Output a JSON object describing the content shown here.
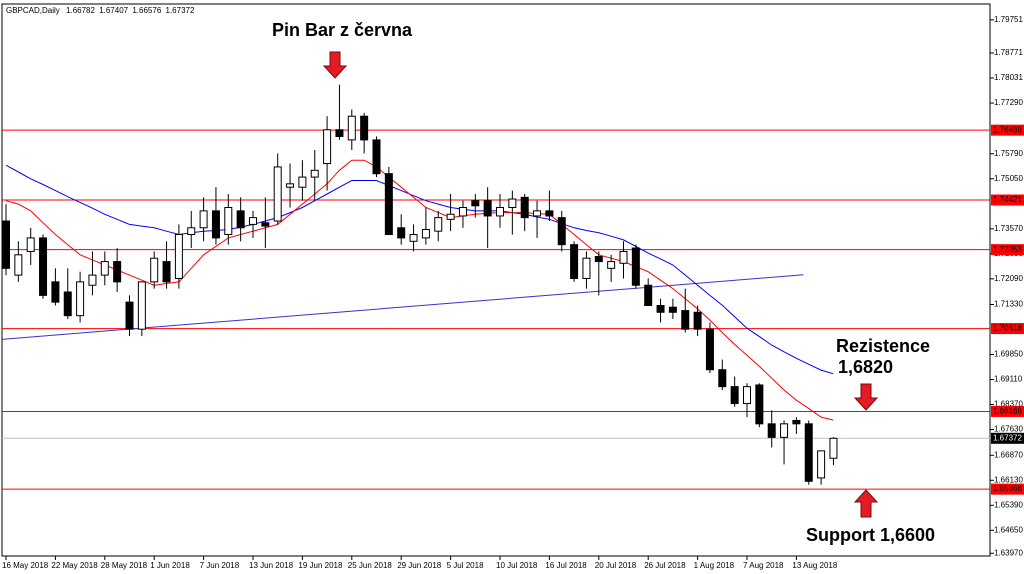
{
  "chart_data": {
    "type": "candlestick",
    "symbol": "GBPCAD,Daily",
    "header_values": [
      1.66782,
      1.67407,
      1.66576,
      1.67372
    ],
    "categories": [
      "16 May 2018",
      null,
      null,
      null,
      "22 May 2018",
      null,
      null,
      null,
      "28 May 2018",
      null,
      null,
      null,
      "1 Jun 2018",
      null,
      null,
      null,
      "7 Jun 2018",
      null,
      null,
      null,
      "13 Jun 2018",
      null,
      null,
      null,
      "19 Jun 2018",
      null,
      null,
      null,
      "25 Jun 2018",
      null,
      null,
      null,
      "29 Jun 2018",
      null,
      null,
      null,
      "5 Jul 2018",
      null,
      null,
      null,
      "10 Jul 2018",
      null,
      null,
      null,
      "16 Jul 2018",
      null,
      null,
      null,
      "20 Jul 2018",
      null,
      null,
      null,
      "26 Jul 2018",
      null,
      null,
      null,
      "1 Aug 2018",
      null,
      null,
      null,
      "7 Aug 2018",
      null,
      null,
      null,
      "13 Aug 2018",
      null,
      null,
      null
    ],
    "ohlc": [
      [
        1.738,
        1.743,
        1.722,
        1.724
      ],
      [
        1.722,
        1.732,
        1.72,
        1.728
      ],
      [
        1.729,
        1.736,
        1.725,
        1.733
      ],
      [
        1.733,
        1.734,
        1.715,
        1.716
      ],
      [
        1.72,
        1.724,
        1.713,
        1.714
      ],
      [
        1.717,
        1.724,
        1.709,
        1.71
      ],
      [
        1.71,
        1.723,
        1.708,
        1.72
      ],
      [
        1.719,
        1.729,
        1.716,
        1.722
      ],
      [
        1.722,
        1.729,
        1.719,
        1.726
      ],
      [
        1.726,
        1.73,
        1.717,
        1.72
      ],
      [
        1.714,
        1.716,
        1.704,
        1.706
      ],
      [
        1.706,
        1.72,
        1.704,
        1.72
      ],
      [
        1.72,
        1.729,
        1.718,
        1.727
      ],
      [
        1.726,
        1.732,
        1.718,
        1.72
      ],
      [
        1.721,
        1.737,
        1.718,
        1.734
      ],
      [
        1.734,
        1.741,
        1.73,
        1.736
      ],
      [
        1.736,
        1.745,
        1.732,
        1.741
      ],
      [
        1.741,
        1.748,
        1.731,
        1.733
      ],
      [
        1.734,
        1.746,
        1.731,
        1.742
      ],
      [
        1.741,
        1.745,
        1.732,
        1.736
      ],
      [
        1.737,
        1.741,
        1.733,
        1.739
      ],
      [
        1.7375,
        1.745,
        1.73,
        1.7365
      ],
      [
        1.738,
        1.758,
        1.737,
        1.754
      ],
      [
        1.748,
        1.755,
        1.742,
        1.749
      ],
      [
        1.748,
        1.756,
        1.744,
        1.751
      ],
      [
        1.751,
        1.759,
        1.744,
        1.753
      ],
      [
        1.755,
        1.769,
        1.747,
        1.765
      ],
      [
        1.765,
        1.7783,
        1.762,
        1.763
      ],
      [
        1.762,
        1.771,
        1.759,
        1.769
      ],
      [
        1.769,
        1.77,
        1.758,
        1.762
      ],
      [
        1.762,
        1.763,
        1.751,
        1.752
      ],
      [
        1.752,
        1.754,
        1.734,
        1.734
      ],
      [
        1.736,
        1.74,
        1.731,
        1.733
      ],
      [
        1.732,
        1.737,
        1.729,
        1.734
      ],
      [
        1.733,
        1.742,
        1.731,
        1.7355
      ],
      [
        1.735,
        1.741,
        1.732,
        1.739
      ],
      [
        1.7385,
        1.746,
        1.735,
        1.74
      ],
      [
        1.7395,
        1.744,
        1.736,
        1.742
      ],
      [
        1.744,
        1.746,
        1.739,
        1.7425
      ],
      [
        1.744,
        1.748,
        1.73,
        1.7395
      ],
      [
        1.7395,
        1.746,
        1.736,
        1.742
      ],
      [
        1.742,
        1.747,
        1.734,
        1.7445
      ],
      [
        1.745,
        1.746,
        1.735,
        1.739
      ],
      [
        1.7395,
        1.744,
        1.733,
        1.741
      ],
      [
        1.741,
        1.747,
        1.738,
        1.7395
      ],
      [
        1.739,
        1.741,
        1.729,
        1.731
      ],
      [
        1.731,
        1.732,
        1.72,
        1.721
      ],
      [
        1.721,
        1.729,
        1.718,
        1.727
      ],
      [
        1.7275,
        1.729,
        1.716,
        1.726
      ],
      [
        1.724,
        1.728,
        1.72,
        1.726
      ],
      [
        1.7255,
        1.732,
        1.721,
        1.729
      ],
      [
        1.73,
        1.731,
        1.718,
        1.719
      ],
      [
        1.719,
        1.721,
        1.713,
        1.713
      ],
      [
        1.713,
        1.715,
        1.708,
        1.711
      ],
      [
        1.7125,
        1.715,
        1.709,
        1.711
      ],
      [
        1.7115,
        1.718,
        1.705,
        1.706
      ],
      [
        1.711,
        1.713,
        1.704,
        1.706
      ],
      [
        1.706,
        1.708,
        1.693,
        1.694
      ],
      [
        1.694,
        1.697,
        1.688,
        1.689
      ],
      [
        1.689,
        1.692,
        1.683,
        1.684
      ],
      [
        1.684,
        1.69,
        1.68,
        1.689
      ],
      [
        1.6895,
        1.69,
        1.677,
        1.678
      ],
      [
        1.678,
        1.682,
        1.671,
        1.674
      ],
      [
        1.674,
        1.679,
        1.666,
        1.678
      ],
      [
        1.679,
        1.68,
        1.675,
        1.678
      ],
      [
        1.678,
        1.679,
        1.66,
        1.661
      ],
      [
        1.662,
        1.67,
        1.66,
        1.67
      ],
      [
        1.66782,
        1.67407,
        1.66576,
        1.67372
      ]
    ],
    "lines": [
      {
        "color": "#0000ff",
        "values": [
          1.7545,
          1.7525,
          1.7505,
          1.7488,
          1.747,
          1.7452,
          1.7435,
          1.7418,
          1.74,
          1.7385,
          1.737,
          1.7365,
          1.736,
          1.735,
          1.734,
          1.7345,
          1.735,
          1.7352,
          1.7355,
          1.7362,
          1.737,
          1.738,
          1.739,
          1.7405,
          1.742,
          1.744,
          1.746,
          1.748,
          1.75,
          1.75,
          1.75,
          1.7485,
          1.747,
          1.7455,
          1.744,
          1.743,
          1.742,
          1.7415,
          1.741,
          1.741,
          1.741,
          1.7405,
          1.74,
          1.7392,
          1.7385,
          1.7372,
          1.736,
          1.7352,
          1.7345,
          1.7335,
          1.7324,
          1.7305,
          1.7285,
          1.7268,
          1.725,
          1.722,
          1.719,
          1.716,
          1.7131,
          1.7097,
          1.7063,
          1.7038,
          1.7013,
          1.6993,
          1.6974,
          1.6956,
          1.6939,
          1.6928
        ]
      },
      {
        "color": "#ff0000",
        "values": [
          1.744,
          1.743,
          1.741,
          1.7375,
          1.734,
          1.731,
          1.728,
          1.7265,
          1.725,
          1.7235,
          1.722,
          1.7205,
          1.719,
          1.7195,
          1.72,
          1.724,
          1.728,
          1.7305,
          1.733,
          1.734,
          1.735,
          1.736,
          1.737,
          1.74,
          1.743,
          1.746,
          1.749,
          1.753,
          1.756,
          1.756,
          1.754,
          1.751,
          1.748,
          1.745,
          1.742,
          1.7405,
          1.739,
          1.7395,
          1.74,
          1.7403,
          1.7405,
          1.7405,
          1.7405,
          1.7402,
          1.74,
          1.737,
          1.734,
          1.731,
          1.728,
          1.727,
          1.726,
          1.7245,
          1.723,
          1.7205,
          1.718,
          1.715,
          1.712,
          1.7087,
          1.705,
          1.7015,
          1.6983,
          1.695,
          1.6915,
          1.688,
          1.685,
          1.6825,
          1.68,
          1.6791
        ]
      }
    ],
    "trendline": {
      "color": "#3333cc",
      "x": [
        "16 May 2018",
        "13 Aug 2018"
      ],
      "values": [
        1.703,
        1.7221
      ]
    },
    "levels": [
      1.76488,
      1.74421,
      1.72953,
      1.70618,
      1.68166,
      1.65868
    ],
    "level_color": "#ff0000",
    "last_price": 1.67372,
    "ylim": [
      1.6389,
      1.8022
    ],
    "yticks": [
      1.79751,
      1.78771,
      1.78031,
      {
        "value": 1.7729,
        "label": "1.77290"
      },
      {
        "value": 1.7579,
        "label": "1.75790"
      },
      {
        "value": 1.7505,
        "label": "1.75050"
      },
      {
        "value": 1.7357,
        "label": "1.73570"
      },
      {
        "value": 1.7283,
        "label": "1.72830"
      },
      {
        "value": 1.7209,
        "label": "1.72090"
      },
      {
        "value": 1.7133,
        "label": "1.71330"
      },
      {
        "value": 1.6985,
        "label": "1.69850"
      },
      {
        "value": 1.6911,
        "label": "1.69110"
      },
      {
        "value": 1.6837,
        "label": "1.68370"
      },
      {
        "value": 1.6763,
        "label": "1.67630"
      },
      {
        "value": 1.6687,
        "label": "1.66870"
      },
      {
        "value": 1.6613,
        "label": "1.66130"
      },
      {
        "value": 1.6539,
        "label": "1.65390"
      },
      {
        "value": 1.6465,
        "label": "1.64650"
      },
      {
        "value": 1.6397,
        "label": "1.63970"
      }
    ],
    "annotations": [
      "Pin Bar z června",
      "Rezistence",
      "1,6820",
      "Support 1,6600"
    ]
  }
}
